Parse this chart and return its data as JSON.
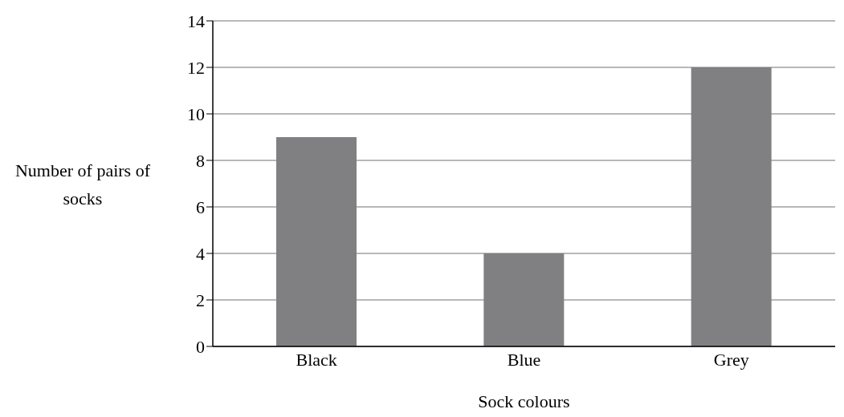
{
  "chart_data": {
    "type": "bar",
    "xlabel": "Sock colours",
    "ylabel": "Number of pairs of socks",
    "categories": [
      "Black",
      "Blue",
      "Grey"
    ],
    "values": [
      9,
      4,
      12
    ],
    "color": "#808083",
    "ylim": [
      0,
      14
    ],
    "yticks": [
      0,
      2,
      4,
      6,
      8,
      10,
      12,
      14
    ],
    "grid": "y"
  }
}
